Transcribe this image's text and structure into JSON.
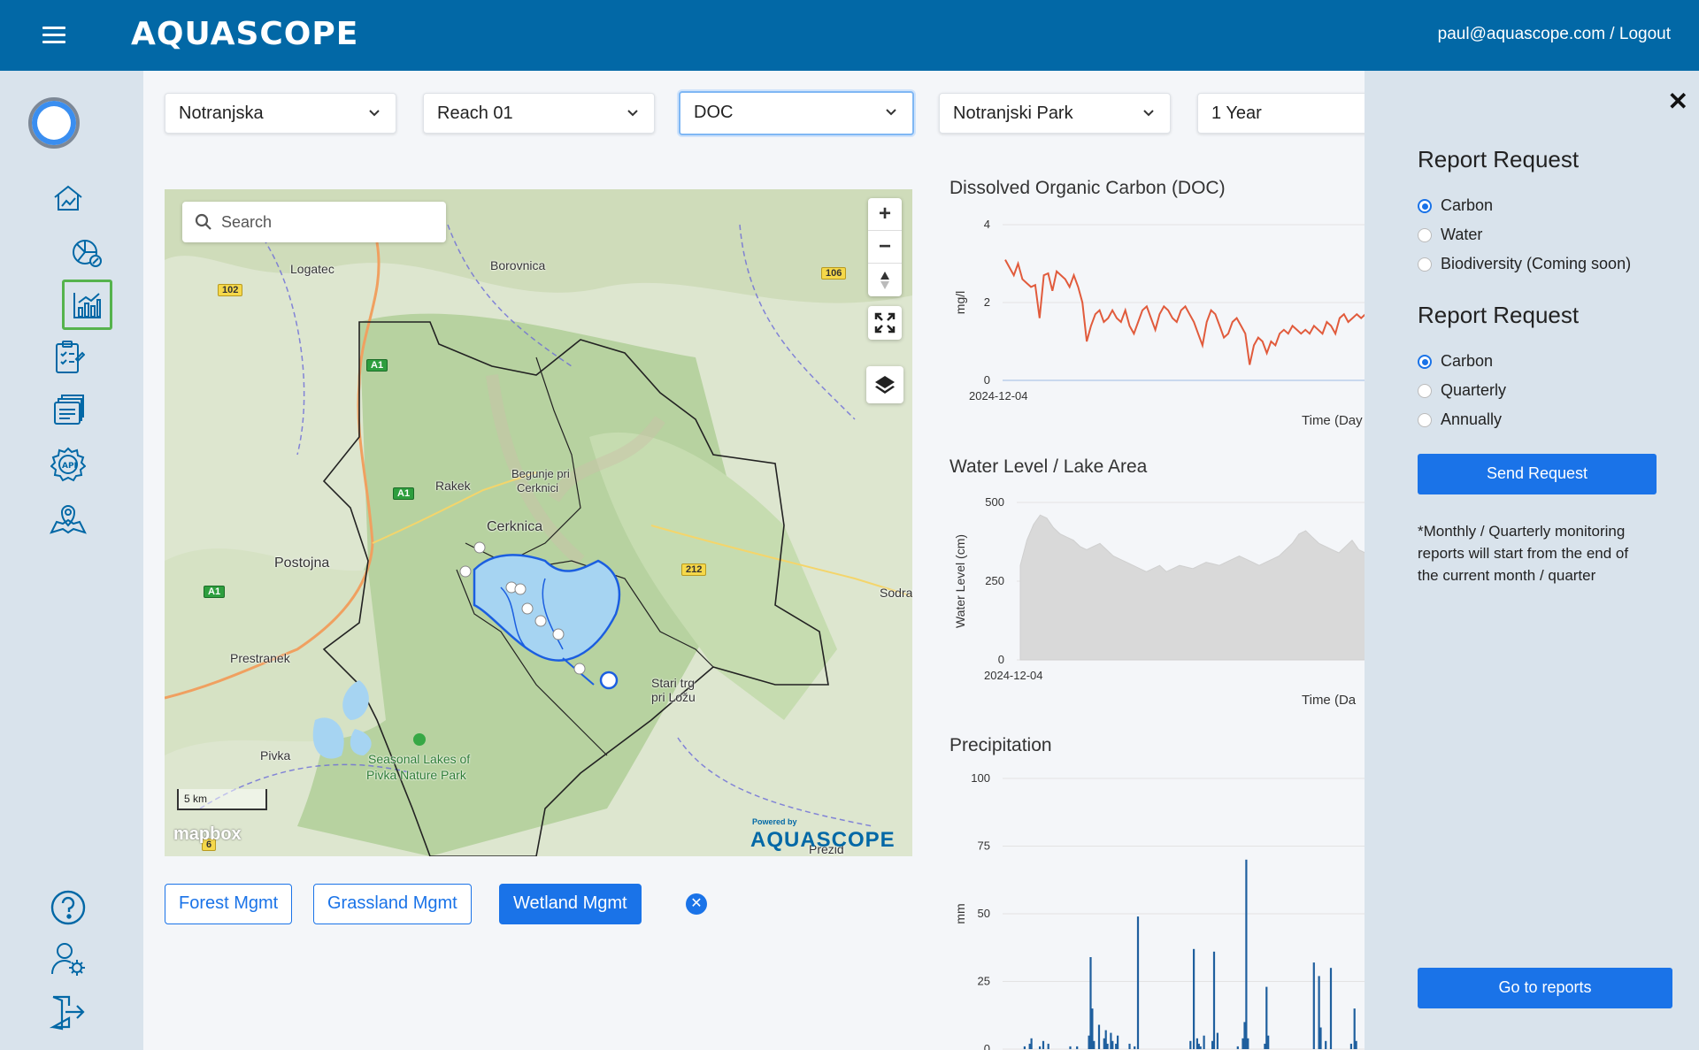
{
  "header": {
    "logo": "AQUASCOPE",
    "user": "paul@aquascope.com",
    "separator": " / ",
    "logout": "Logout"
  },
  "sidebar": {
    "items": [
      {
        "name": "home-icon"
      },
      {
        "name": "analytics-pie-icon"
      },
      {
        "name": "bar-chart-icon",
        "active": true
      },
      {
        "name": "report-checklist-icon"
      },
      {
        "name": "documents-icon"
      },
      {
        "name": "api-icon"
      },
      {
        "name": "map-icon"
      }
    ],
    "bottom": [
      {
        "name": "help-icon"
      },
      {
        "name": "user-settings-icon"
      },
      {
        "name": "logout-icon"
      }
    ]
  },
  "filters": {
    "region": "Notranjska",
    "reach": "Reach 01",
    "parameter": "DOC",
    "park": "Notranjski Park",
    "period": "1 Year"
  },
  "map": {
    "search_placeholder": "Search",
    "zoom_in": "+",
    "zoom_out": "−",
    "places": {
      "logatec": "Logatec",
      "borovnica": "Borovnica",
      "rakek": "Rakek",
      "begunje": "Begunje pri",
      "begunje2": "Cerknici",
      "cerknica": "Cerknica",
      "postojna": "Postojna",
      "prestranek": "Prestranek",
      "pivka": "Pivka",
      "lakes1": "Seasonal Lakes of",
      "lakes2": "Pivka Nature Park",
      "stari1": "Stari trg",
      "stari2": "pri Ložu",
      "sodra": "Sodra",
      "prezid": "Prezid"
    },
    "roads": {
      "r102": "102",
      "r106": "106",
      "r212": "212",
      "r6": "6",
      "a1a": "A1",
      "a1b": "A1",
      "a1c": "A1"
    },
    "scale": "5 km",
    "attribution": "mapbox",
    "powered_by": "Powered by",
    "powered_logo": "AQUASCOPE"
  },
  "management": {
    "forest": "Forest Mgmt",
    "grassland": "Grassland Mgmt",
    "wetland": "Wetland Mgmt",
    "clear": "✕"
  },
  "chart_data": [
    {
      "type": "line",
      "title": "Dissolved Organic Carbon (DOC)",
      "ylabel": "mg/l",
      "xlabel": "Time (Day",
      "x_start": "2024-12-04",
      "ylim": [
        0,
        4
      ],
      "yticks": [
        "4",
        "2",
        "0"
      ],
      "color": "#e15b3c",
      "values": [
        3.1,
        2.9,
        2.7,
        3.0,
        2.6,
        2.5,
        2.4,
        2.45,
        1.6,
        2.7,
        2.75,
        2.3,
        2.8,
        2.7,
        2.6,
        2.4,
        2.7,
        2.4,
        2.0,
        1.0,
        1.4,
        1.7,
        1.8,
        1.5,
        1.6,
        1.8,
        1.6,
        1.5,
        1.8,
        1.4,
        1.2,
        1.5,
        1.8,
        1.9,
        1.6,
        1.3,
        1.7,
        1.9,
        1.8,
        1.6,
        1.5,
        1.8,
        1.9,
        1.7,
        1.5,
        1.2,
        0.9,
        1.5,
        1.8,
        1.7,
        1.4,
        1.1,
        1.2,
        1.5,
        1.6,
        1.4,
        1.2,
        0.4,
        0.9,
        1.1,
        1.0,
        0.7,
        1.0,
        0.9,
        1.2,
        1.3,
        1.2,
        1.4,
        1.3,
        1.2,
        1.3,
        1.2,
        1.4,
        1.3,
        1.2,
        1.5,
        1.4,
        1.2,
        1.6,
        1.7,
        1.5,
        1.6,
        1.7,
        1.6,
        1.7
      ]
    },
    {
      "type": "area",
      "title": "Water Level / Lake Area",
      "ylabel": "Water Level (cm)",
      "xlabel": "Time (Da",
      "x_start": "2024-12-04",
      "ylim": [
        0,
        500
      ],
      "yticks": [
        "500",
        "250",
        "0"
      ],
      "color": "#d9d9d9",
      "values": [
        300,
        380,
        430,
        460,
        450,
        420,
        400,
        390,
        380,
        360,
        350,
        360,
        370,
        350,
        330,
        320,
        310,
        300,
        290,
        280,
        290,
        300,
        280,
        290,
        300,
        295,
        290,
        300,
        310,
        305,
        300,
        310,
        320,
        330,
        320,
        310,
        300,
        310,
        320,
        330,
        350,
        370,
        400,
        410,
        390,
        370,
        360,
        350,
        340,
        360,
        380,
        350,
        340
      ]
    },
    {
      "type": "bar",
      "title": "Precipitation",
      "ylabel": "mm",
      "ylim": [
        0,
        100
      ],
      "yticks": [
        "100",
        "75",
        "50",
        "25",
        "0"
      ],
      "color": "#1f5f9e",
      "values": [
        0,
        0,
        1,
        0,
        0,
        2,
        4,
        0,
        0,
        0,
        0,
        1,
        0,
        3,
        0,
        0,
        2,
        0,
        0,
        0,
        0,
        0,
        0,
        0,
        0,
        0,
        0,
        0,
        0,
        1,
        0,
        0,
        0,
        1,
        0,
        0,
        0,
        0,
        0,
        0,
        5,
        34,
        15,
        3,
        0,
        0,
        9,
        0,
        0,
        4,
        7,
        2,
        0,
        6,
        3,
        0,
        2,
        5,
        0,
        0,
        0,
        0,
        0,
        0,
        2,
        0,
        0,
        1,
        0,
        49,
        0,
        0,
        0,
        0,
        0,
        0,
        0,
        0,
        0,
        0,
        0,
        0,
        0,
        0,
        0,
        0,
        0,
        0,
        0,
        0,
        0,
        0,
        0,
        0,
        0,
        0,
        0,
        0,
        0,
        0,
        3,
        0,
        37,
        0,
        4,
        2,
        1,
        0,
        5,
        0,
        0,
        0,
        0,
        3,
        36,
        0,
        6,
        0,
        0,
        0,
        0,
        0,
        0,
        0,
        0,
        0,
        0,
        0,
        1,
        0,
        0,
        4,
        10,
        70,
        4,
        0,
        0,
        0,
        0,
        0,
        0,
        0,
        0,
        0,
        2,
        23,
        5,
        0,
        0,
        0,
        0,
        0,
        0,
        0,
        0,
        0,
        0,
        0,
        0,
        0,
        0,
        0,
        0,
        0,
        0,
        0,
        0,
        0,
        0,
        0,
        0,
        0,
        0,
        32,
        0,
        0,
        27,
        8,
        0,
        0,
        3,
        0,
        0,
        30,
        0,
        0,
        0,
        0,
        0,
        0,
        0,
        0,
        0,
        0,
        0,
        2,
        0,
        15,
        3,
        0,
        0,
        0,
        0,
        0
      ]
    }
  ],
  "panel": {
    "close": "✕",
    "title1": "Report Request",
    "options1": [
      "Carbon",
      "Water",
      "Biodiversity (Coming soon)"
    ],
    "selected1": 0,
    "title2": "Report Request",
    "options2": [
      "Carbon",
      "Quarterly",
      "Annually"
    ],
    "selected2": 0,
    "send": "Send Request",
    "note": "*Monthly / Quarterly monitoring reports will start from the end of the current month / quarter",
    "go": "Go to reports"
  }
}
